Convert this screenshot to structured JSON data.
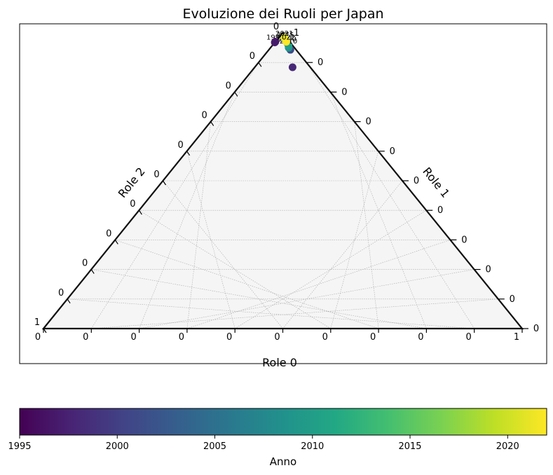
{
  "chart_data": {
    "type": "scatter",
    "subtype": "ternary",
    "title": "Evoluzione dei Ruoli per Japan",
    "axes": {
      "bottom": {
        "label": "Role 0",
        "tick_labels": [
          "0",
          "0",
          "0",
          "0",
          "0",
          "0",
          "0",
          "0",
          "0",
          "0",
          "1"
        ]
      },
      "right": {
        "label": "Role 1",
        "tick_labels": [
          "0",
          "0",
          "0",
          "0",
          "0",
          "0",
          "0",
          "0",
          "0",
          "0",
          "1"
        ]
      },
      "left": {
        "label": "Role 2",
        "tick_labels": [
          "1",
          "0",
          "0",
          "0",
          "0",
          "0",
          "0",
          "0",
          "0",
          "0",
          "0"
        ]
      }
    },
    "grid": true,
    "colorbar": {
      "label": "Anno",
      "colormap": "viridis",
      "range": [
        1995,
        2022
      ],
      "ticks": [
        "1995",
        "2000",
        "2005",
        "2010",
        "2015",
        "2020"
      ]
    },
    "points": [
      {
        "year": 1995,
        "role0": 0.97,
        "role1": 0.0,
        "role2": 0.03,
        "label": "1995"
      },
      {
        "year": 1996,
        "role0": 0.97,
        "role1": 0.0,
        "role2": 0.03,
        "label": ""
      },
      {
        "year": 1997,
        "role0": 0.968,
        "role1": 0.0,
        "role2": 0.032,
        "label": ""
      },
      {
        "year": 1998,
        "role0": 0.884,
        "role1": 0.079,
        "role2": 0.037,
        "label": ""
      },
      {
        "year": 2000,
        "role0": 0.965,
        "role1": 0.028,
        "role2": 0.007,
        "label": "2000"
      },
      {
        "year": 2001,
        "role0": 0.943,
        "role1": 0.045,
        "role2": 0.012,
        "label": ""
      },
      {
        "year": 2009,
        "role0": 0.95,
        "role1": 0.038,
        "role2": 0.012,
        "label": ""
      },
      {
        "year": 2010,
        "role0": 0.957,
        "role1": 0.034,
        "role2": 0.009,
        "label": "2010"
      },
      {
        "year": 2015,
        "role0": 0.979,
        "role1": 0.016,
        "role2": 0.005,
        "label": "2015"
      },
      {
        "year": 2021,
        "role0": 0.984,
        "role1": 0.012,
        "role2": 0.004,
        "label": "2021"
      },
      {
        "year": 2022,
        "role0": 0.97,
        "role1": 0.023,
        "role2": 0.007,
        "label": "2022"
      }
    ]
  }
}
